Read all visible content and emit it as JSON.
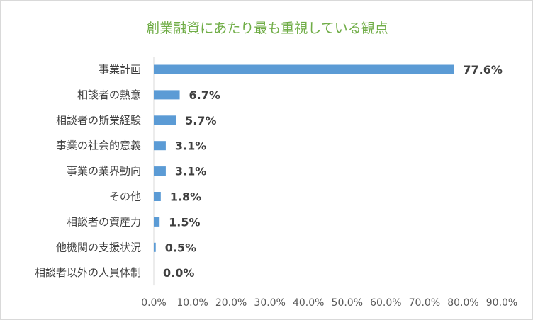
{
  "chart_data": {
    "type": "bar",
    "orientation": "horizontal",
    "title": "創業融資にあたり最も重視している観点",
    "categories": [
      "事業計画",
      "相談者の熱意",
      "相談者の斯業経験",
      "事業の社会的意義",
      "事業の業界動向",
      "その他",
      "相談者の資産力",
      "他機関の支援状況",
      "相談者以外の人員体制"
    ],
    "values": [
      77.6,
      6.7,
      5.7,
      3.1,
      3.1,
      1.8,
      1.5,
      0.5,
      0.0
    ],
    "data_labels": [
      "77.6%",
      "6.7%",
      "5.7%",
      "3.1%",
      "3.1%",
      "1.8%",
      "1.5%",
      "0.5%",
      "0.0%"
    ],
    "xlim": [
      0,
      90
    ],
    "x_ticks": [
      "0.0%",
      "10.0%",
      "20.0%",
      "30.0%",
      "40.0%",
      "50.0%",
      "60.0%",
      "70.0%",
      "80.0%",
      "90.0%"
    ],
    "grid": false,
    "legend": "none",
    "bar_color": "#5b9bd5"
  }
}
